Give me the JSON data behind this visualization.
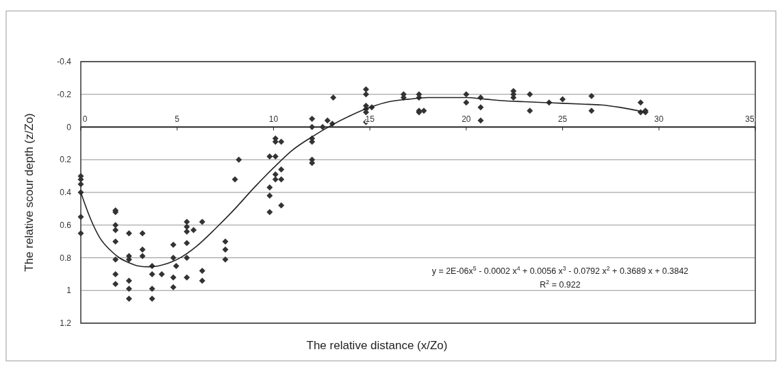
{
  "chart_data": {
    "type": "scatter",
    "xlabel": "The relative distance (x/Zo)",
    "ylabel": "The relative scour depth (z/Zo)",
    "xlim": [
      0,
      35
    ],
    "xticks": [
      0,
      5,
      10,
      15,
      20,
      25,
      30,
      35
    ],
    "ylim": [
      1.2,
      -0.4
    ],
    "yticks": [
      -0.4,
      -0.2,
      0,
      0.2,
      0.4,
      0.6,
      0.8,
      1,
      1.2
    ],
    "grid": "y",
    "annotations": [
      "y =  2E-06x$^{5}$ - 0.0002 x$^{4}$ + 0.0056 x$^{3}$ - 0.0792 x$^{2}$ + 0.3689 x +  0.3842",
      "R$^{2}$ = 0.922"
    ],
    "series": [
      {
        "marker": "diamond",
        "color": "#333333",
        "x": [
          0,
          0,
          0,
          0,
          0,
          0,
          1.8,
          1.8,
          1.8,
          1.8,
          1.8,
          1.8,
          1.8,
          1.8,
          2.5,
          2.5,
          2.5,
          2.5,
          2.5,
          2.5,
          3.2,
          3.2,
          3.2,
          3.7,
          3.7,
          3.7,
          3.7,
          4.2,
          4.8,
          4.8,
          4.8,
          4.8,
          4.95,
          5.5,
          5.5,
          5.5,
          5.5,
          5.5,
          5.5,
          5.85,
          6.3,
          6.3,
          6.3,
          7.5,
          7.5,
          7.5,
          8.0,
          8.2,
          9.8,
          9.8,
          9.8,
          9.8,
          10.1,
          10.1,
          10.1,
          10.1,
          10.1,
          10.4,
          10.4,
          10.4,
          10.4,
          12.0,
          12.0,
          12.0,
          12.0,
          12.0,
          12.0,
          12.55,
          12.8,
          13.05,
          13.1,
          14.8,
          14.8,
          14.8,
          14.8,
          14.8,
          14.8,
          15.1,
          16.75,
          16.75,
          17.55,
          17.55,
          17.55,
          17.55,
          17.8,
          20.0,
          20.0,
          20.75,
          20.75,
          20.75,
          22.45,
          22.45,
          22.45,
          23.3,
          23.3,
          24.3,
          25.0,
          26.5,
          26.5,
          29.05,
          29.05,
          29.3,
          29.3
        ],
        "values": [
          0.3,
          0.32,
          0.35,
          0.4,
          0.55,
          0.65,
          0.51,
          0.52,
          0.6,
          0.63,
          0.7,
          0.81,
          0.9,
          0.96,
          0.65,
          0.79,
          0.81,
          0.94,
          0.99,
          1.05,
          0.65,
          0.75,
          0.79,
          0.85,
          0.9,
          0.99,
          1.05,
          0.9,
          0.72,
          0.8,
          0.92,
          0.98,
          0.85,
          0.58,
          0.61,
          0.64,
          0.71,
          0.8,
          0.92,
          0.63,
          0.58,
          0.88,
          0.94,
          0.7,
          0.75,
          0.81,
          0.32,
          0.2,
          0.18,
          0.37,
          0.42,
          0.52,
          0.07,
          0.09,
          0.18,
          0.29,
          0.32,
          0.09,
          0.26,
          0.32,
          0.48,
          -0.05,
          0,
          0.07,
          0.09,
          0.2,
          0.22,
          0,
          -0.04,
          -0.02,
          -0.18,
          -0.23,
          -0.2,
          -0.13,
          -0.11,
          -0.09,
          -0.03,
          -0.12,
          -0.2,
          -0.18,
          -0.2,
          -0.18,
          -0.1,
          -0.09,
          -0.1,
          -0.2,
          -0.15,
          -0.18,
          -0.12,
          -0.04,
          -0.22,
          -0.2,
          -0.18,
          -0.2,
          -0.1,
          -0.15,
          -0.17,
          -0.19,
          -0.1,
          -0.15,
          -0.09,
          -0.1,
          -0.09
        ]
      },
      {
        "type": "line",
        "marker": "none",
        "color": "#222222",
        "x": [
          0,
          0.5,
          1,
          1.5,
          2,
          2.5,
          3,
          3.5,
          4,
          5,
          6,
          7,
          8,
          9,
          10,
          11,
          12,
          13,
          14,
          15,
          16,
          17,
          18,
          19,
          20,
          21,
          22,
          23,
          24,
          25,
          26,
          27,
          28,
          29.3
        ],
        "values": [
          0.4,
          0.56,
          0.68,
          0.75,
          0.8,
          0.83,
          0.85,
          0.855,
          0.85,
          0.81,
          0.73,
          0.62,
          0.5,
          0.37,
          0.25,
          0.14,
          0.06,
          -0.01,
          -0.07,
          -0.12,
          -0.155,
          -0.17,
          -0.18,
          -0.18,
          -0.18,
          -0.17,
          -0.16,
          -0.155,
          -0.15,
          -0.145,
          -0.14,
          -0.135,
          -0.12,
          -0.09
        ]
      }
    ]
  }
}
